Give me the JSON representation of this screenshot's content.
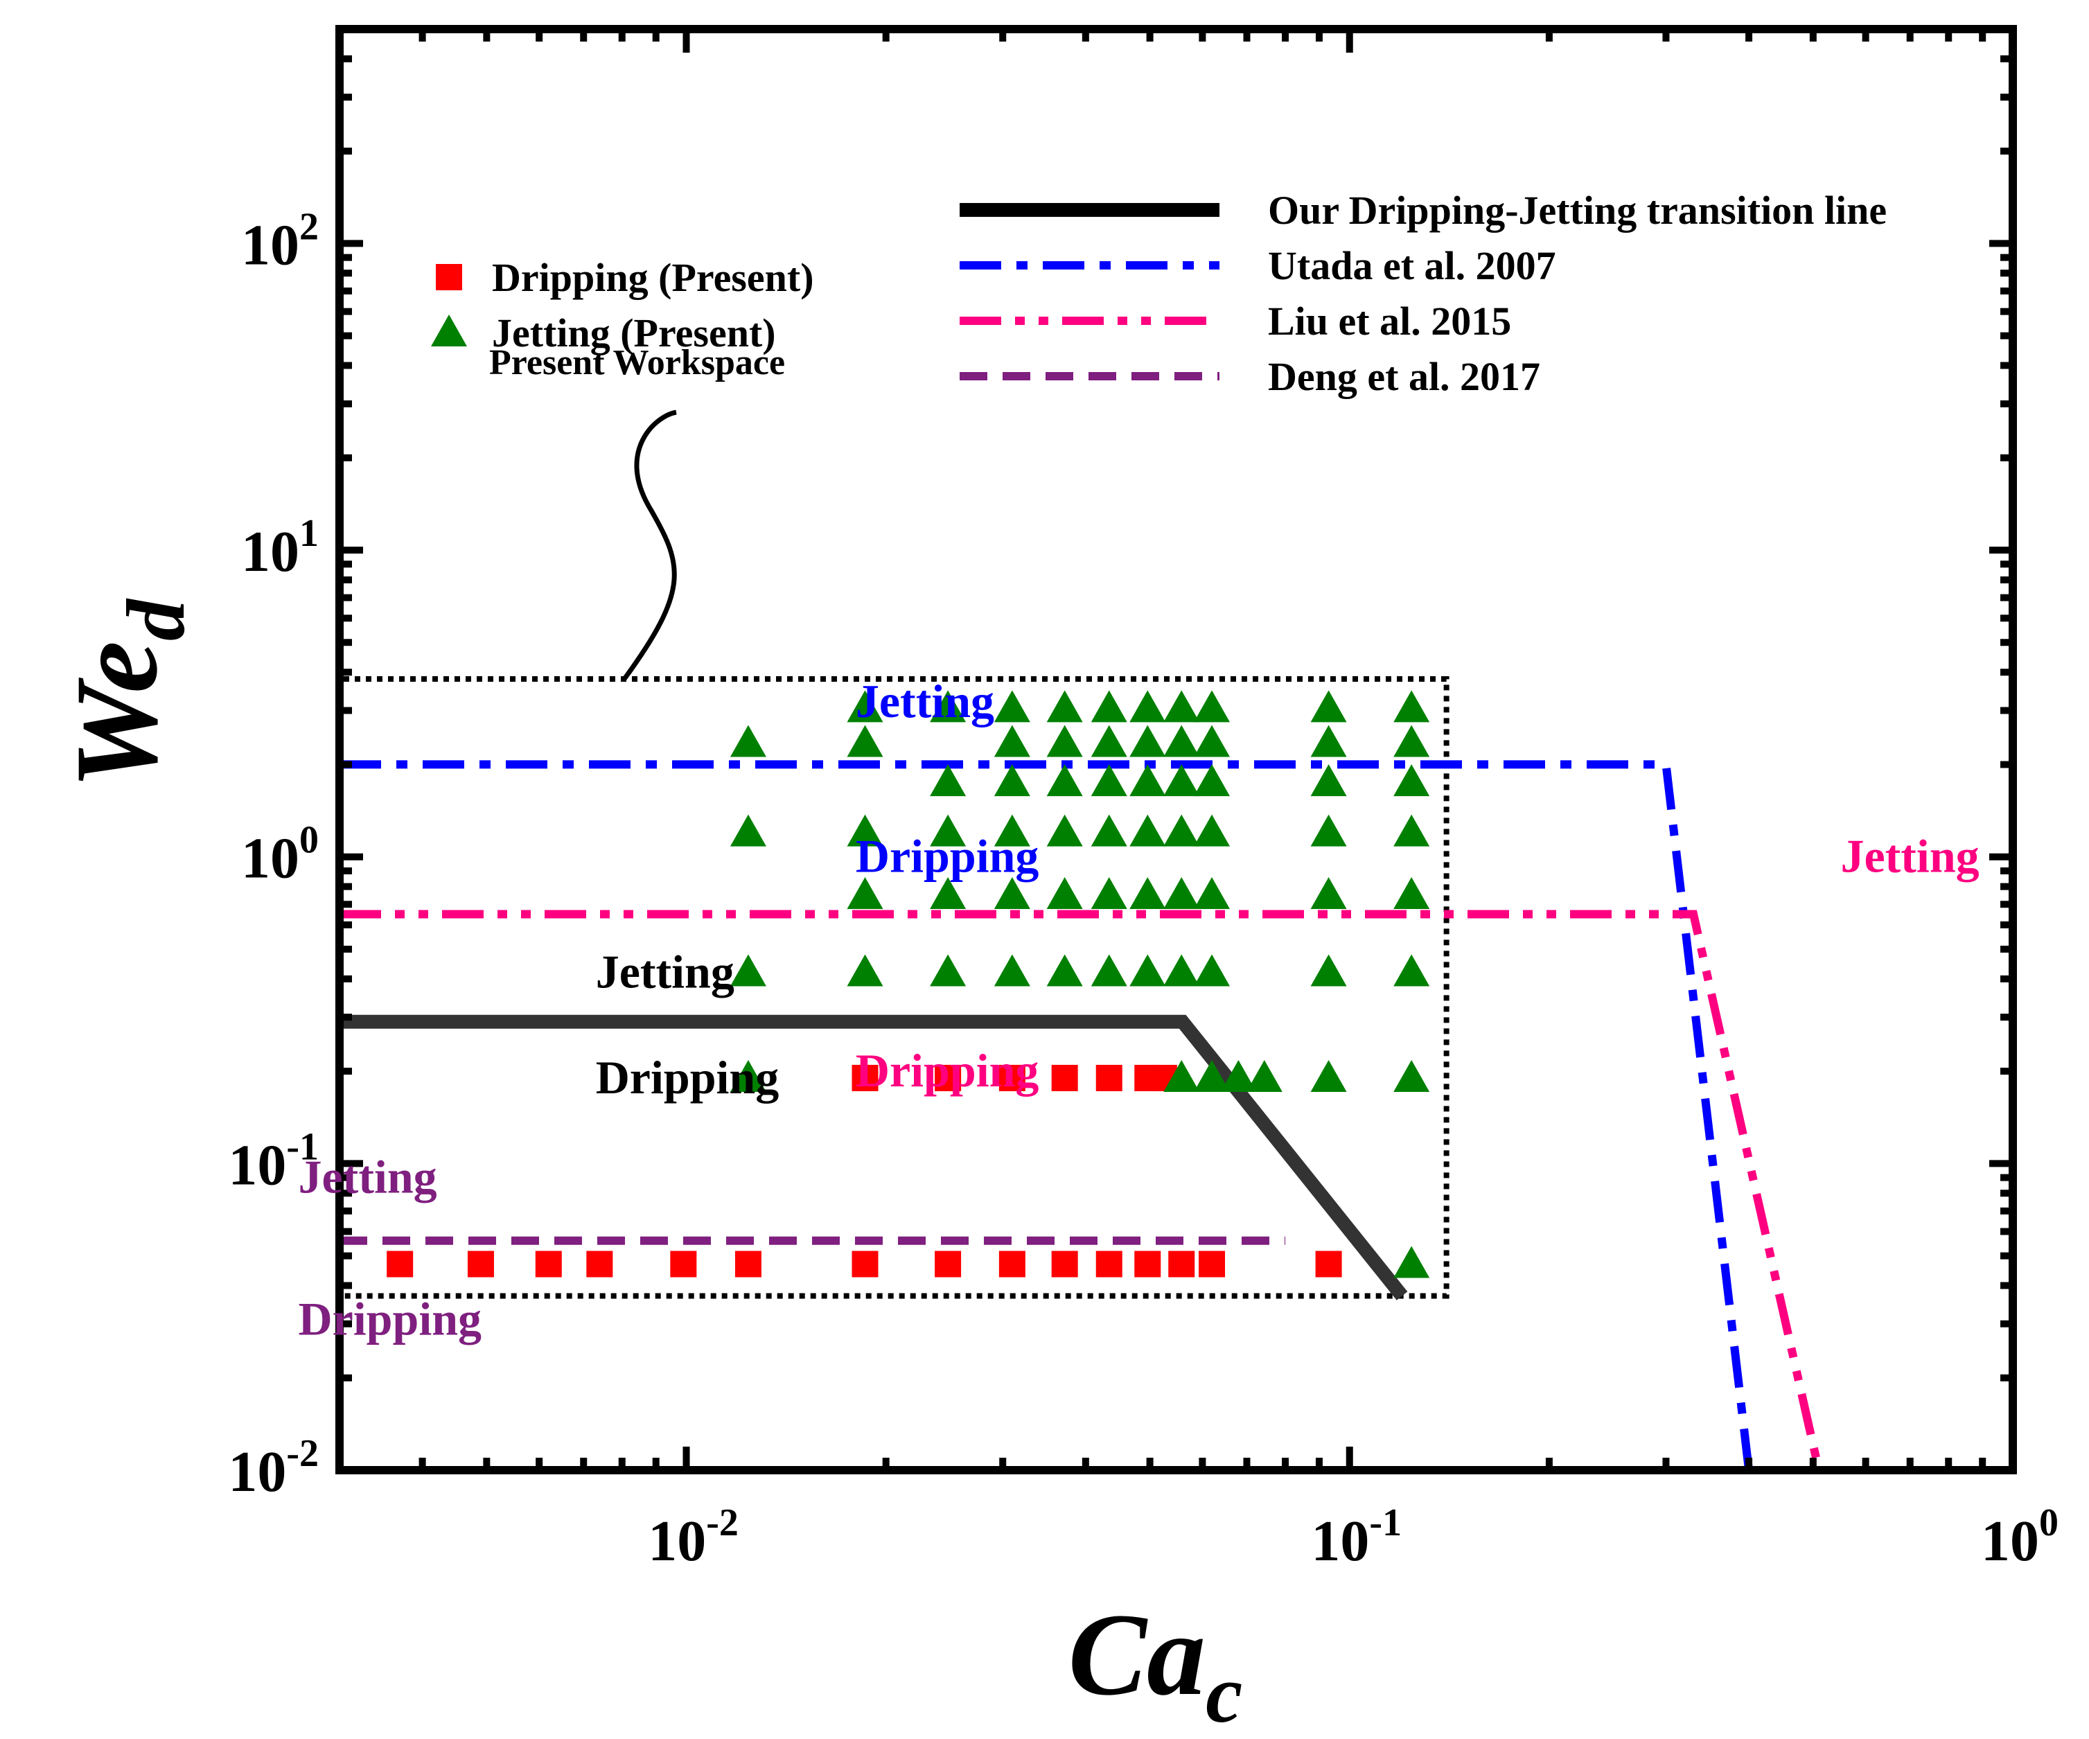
{
  "chart_data": {
    "type": "scatter",
    "title": "",
    "xlabel": "Ca",
    "xlabel_sub": "c",
    "ylabel": "We",
    "ylabel_sub": "d",
    "xscale": "log",
    "yscale": "log",
    "xlim": [
      0.003,
      1.0
    ],
    "ylim": [
      0.01,
      500
    ],
    "grid": false,
    "x_ticks": [
      {
        "value": 0.01,
        "base": "10",
        "exp": "-2"
      },
      {
        "value": 0.1,
        "base": "10",
        "exp": "-1"
      },
      {
        "value": 1.0,
        "base": "10",
        "exp": "0"
      }
    ],
    "y_ticks": [
      {
        "value": 0.01,
        "base": "10",
        "exp": "-2"
      },
      {
        "value": 0.1,
        "base": "10",
        "exp": "-1"
      },
      {
        "value": 1.0,
        "base": "10",
        "exp": "0"
      },
      {
        "value": 10,
        "base": "10",
        "exp": "1"
      },
      {
        "value": 100,
        "base": "10",
        "exp": "2"
      }
    ],
    "series": [
      {
        "name": "Dripping (Present)",
        "marker": "square",
        "color": "#ff0000",
        "points": [
          [
            0.0037,
            0.047
          ],
          [
            0.0049,
            0.047
          ],
          [
            0.0062,
            0.047
          ],
          [
            0.0074,
            0.047
          ],
          [
            0.0099,
            0.047
          ],
          [
            0.0124,
            0.047
          ],
          [
            0.0186,
            0.047
          ],
          [
            0.0248,
            0.047
          ],
          [
            0.031,
            0.047
          ],
          [
            0.0372,
            0.047
          ],
          [
            0.0434,
            0.047
          ],
          [
            0.0496,
            0.047
          ],
          [
            0.0558,
            0.047
          ],
          [
            0.062,
            0.047
          ],
          [
            0.093,
            0.047
          ],
          [
            0.0186,
            0.19
          ],
          [
            0.0248,
            0.19
          ],
          [
            0.031,
            0.19
          ],
          [
            0.0372,
            0.19
          ],
          [
            0.0434,
            0.19
          ],
          [
            0.0496,
            0.19
          ],
          [
            0.0525,
            0.19
          ]
        ]
      },
      {
        "name": "Jetting (Present)",
        "marker": "triangle",
        "color": "#008000",
        "points": [
          [
            0.124,
            0.047
          ],
          [
            0.0124,
            0.19
          ],
          [
            0.0558,
            0.19
          ],
          [
            0.062,
            0.19
          ],
          [
            0.068,
            0.19
          ],
          [
            0.0744,
            0.19
          ],
          [
            0.093,
            0.19
          ],
          [
            0.124,
            0.19
          ],
          [
            0.0124,
            0.42
          ],
          [
            0.0186,
            0.42
          ],
          [
            0.0248,
            0.42
          ],
          [
            0.031,
            0.42
          ],
          [
            0.0372,
            0.42
          ],
          [
            0.0434,
            0.42
          ],
          [
            0.0496,
            0.42
          ],
          [
            0.0558,
            0.42
          ],
          [
            0.062,
            0.42
          ],
          [
            0.093,
            0.42
          ],
          [
            0.124,
            0.42
          ],
          [
            0.0186,
            0.75
          ],
          [
            0.0248,
            0.75
          ],
          [
            0.031,
            0.75
          ],
          [
            0.0372,
            0.75
          ],
          [
            0.0434,
            0.75
          ],
          [
            0.0496,
            0.75
          ],
          [
            0.0558,
            0.75
          ],
          [
            0.062,
            0.75
          ],
          [
            0.093,
            0.75
          ],
          [
            0.124,
            0.75
          ],
          [
            0.0124,
            1.2
          ],
          [
            0.0186,
            1.2
          ],
          [
            0.0248,
            1.2
          ],
          [
            0.031,
            1.2
          ],
          [
            0.0372,
            1.2
          ],
          [
            0.0434,
            1.2
          ],
          [
            0.0496,
            1.2
          ],
          [
            0.0558,
            1.2
          ],
          [
            0.062,
            1.2
          ],
          [
            0.093,
            1.2
          ],
          [
            0.124,
            1.2
          ],
          [
            0.0248,
            1.75
          ],
          [
            0.031,
            1.75
          ],
          [
            0.0372,
            1.75
          ],
          [
            0.0434,
            1.75
          ],
          [
            0.0496,
            1.75
          ],
          [
            0.0558,
            1.75
          ],
          [
            0.062,
            1.75
          ],
          [
            0.093,
            1.75
          ],
          [
            0.124,
            1.75
          ],
          [
            0.0124,
            2.35
          ],
          [
            0.0186,
            2.35
          ],
          [
            0.031,
            2.35
          ],
          [
            0.0372,
            2.35
          ],
          [
            0.0434,
            2.35
          ],
          [
            0.0496,
            2.35
          ],
          [
            0.0558,
            2.35
          ],
          [
            0.062,
            2.35
          ],
          [
            0.093,
            2.35
          ],
          [
            0.124,
            2.35
          ],
          [
            0.0186,
            3.05
          ],
          [
            0.0248,
            3.05
          ],
          [
            0.031,
            3.05
          ],
          [
            0.0372,
            3.05
          ],
          [
            0.0434,
            3.05
          ],
          [
            0.0496,
            3.05
          ],
          [
            0.0558,
            3.05
          ],
          [
            0.062,
            3.05
          ],
          [
            0.093,
            3.05
          ],
          [
            0.124,
            3.05
          ]
        ]
      }
    ],
    "lines": [
      {
        "name": "Our Dripping-Jetting transition line",
        "style": "solid",
        "color": "#333333",
        "points": [
          [
            0.003,
            0.29
          ],
          [
            0.056,
            0.29
          ],
          [
            0.12,
            0.037
          ]
        ]
      },
      {
        "name": "Utada et al. 2007",
        "style": "dashdot",
        "color": "#0000ff",
        "points": [
          [
            0.003,
            2.0
          ],
          [
            0.3,
            2.0
          ],
          [
            0.4,
            0.01
          ]
        ]
      },
      {
        "name": "Liu et al. 2015",
        "style": "dashdotdot",
        "color": "#ff0080",
        "points": [
          [
            0.003,
            0.65
          ],
          [
            0.33,
            0.65
          ],
          [
            0.51,
            0.01
          ]
        ]
      },
      {
        "name": "Deng et al. 2017",
        "style": "dash",
        "color": "#7f1f7f",
        "points": [
          [
            0.003,
            0.056
          ],
          [
            0.08,
            0.056
          ]
        ]
      }
    ],
    "workspace_box": {
      "label": "Present Workspace",
      "x": [
        0.003,
        0.14
      ],
      "y": [
        0.037,
        3.8
      ]
    },
    "legend_left": [
      {
        "label": "Dripping (Present)",
        "marker": "square",
        "color": "#ff0000"
      },
      {
        "label": "Jetting (Present)",
        "marker": "triangle",
        "color": "#008000"
      }
    ],
    "legend_right": [
      {
        "label": "Our Dripping-Jetting transition line",
        "style": "solid",
        "color": "#000000"
      },
      {
        "label": "Utada et al. 2007",
        "style": "dashdot",
        "color": "#0000ff"
      },
      {
        "label": "Liu et al. 2015",
        "style": "dashdotdot",
        "color": "#ff0080"
      },
      {
        "label": "Deng et al. 2017",
        "style": "dash",
        "color": "#7f1f7f"
      }
    ],
    "annotations": [
      {
        "text": "Jetting",
        "x": 0.018,
        "y": 3.2,
        "color": "#0000ff"
      },
      {
        "text": "Dripping",
        "x": 0.018,
        "y": 1.0,
        "color": "#0000ff"
      },
      {
        "text": "Jetting",
        "x": 0.55,
        "y": 1.0,
        "color": "#ff0080"
      },
      {
        "text": "Dripping",
        "x": 0.018,
        "y": 0.2,
        "color": "#ff0080"
      },
      {
        "text": "Jetting",
        "x": 0.0073,
        "y": 0.42,
        "color": "#000000"
      },
      {
        "text": "Dripping",
        "x": 0.0073,
        "y": 0.19,
        "color": "#000000"
      },
      {
        "text": "Jetting",
        "x": 0.0026,
        "y": 0.09,
        "color": "#7f1f7f"
      },
      {
        "text": "Dripping",
        "x": 0.0026,
        "y": 0.031,
        "color": "#7f1f7f"
      }
    ]
  }
}
